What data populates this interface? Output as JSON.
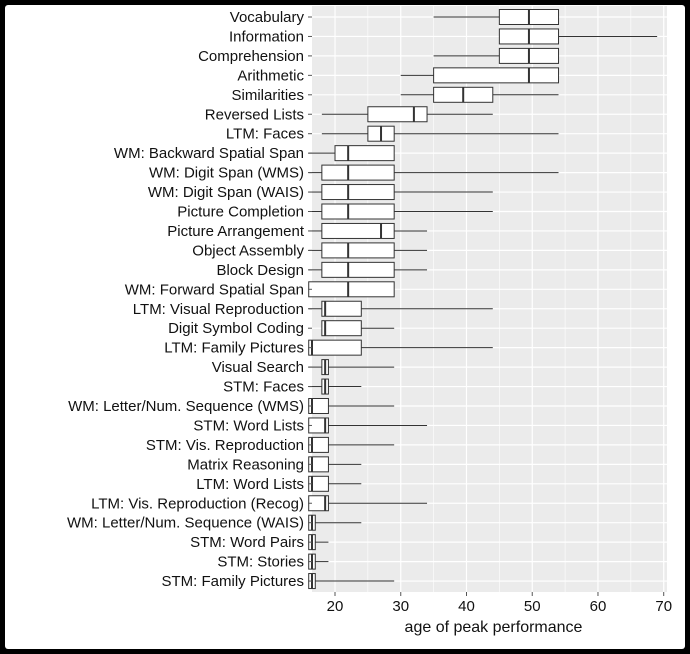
{
  "chart_data": {
    "type": "box",
    "xlabel": "age of peak performance",
    "xlim": [
      16.5,
      70.5
    ],
    "xticks": [
      20,
      30,
      40,
      50,
      60,
      70
    ],
    "grid": true,
    "items": [
      {
        "label": "Vocabulary",
        "lo": 35,
        "q1": 45,
        "med": 49.5,
        "q3": 54,
        "hi": 54
      },
      {
        "label": "Information",
        "lo": 45,
        "q1": 45,
        "med": 49.5,
        "q3": 54,
        "hi": 69
      },
      {
        "label": "Comprehension",
        "lo": 35,
        "q1": 45,
        "med": 49.5,
        "q3": 54,
        "hi": 54
      },
      {
        "label": "Arithmetic",
        "lo": 30,
        "q1": 35,
        "med": 49.5,
        "q3": 54,
        "hi": 54
      },
      {
        "label": "Similarities",
        "lo": 30,
        "q1": 35,
        "med": 39.5,
        "q3": 44,
        "hi": 54
      },
      {
        "label": "Reversed Lists",
        "lo": 18,
        "q1": 25,
        "med": 32,
        "q3": 34,
        "hi": 44
      },
      {
        "label": "LTM: Faces",
        "lo": 18,
        "q1": 25,
        "med": 27,
        "q3": 29,
        "hi": 54
      },
      {
        "label": "WM: Backward Spatial Span",
        "lo": 16,
        "q1": 20,
        "med": 22,
        "q3": 29,
        "hi": 29
      },
      {
        "label": "WM: Digit Span (WMS)",
        "lo": 16,
        "q1": 18,
        "med": 22,
        "q3": 29,
        "hi": 54
      },
      {
        "label": "WM: Digit Span (WAIS)",
        "lo": 16,
        "q1": 18,
        "med": 22,
        "q3": 29,
        "hi": 44
      },
      {
        "label": "Picture Completion",
        "lo": 16,
        "q1": 18,
        "med": 22,
        "q3": 29,
        "hi": 44
      },
      {
        "label": "Picture Arrangement",
        "lo": 16,
        "q1": 18,
        "med": 27,
        "q3": 29,
        "hi": 34
      },
      {
        "label": "Object Assembly",
        "lo": 16,
        "q1": 18,
        "med": 22,
        "q3": 29,
        "hi": 34
      },
      {
        "label": "Block Design",
        "lo": 16,
        "q1": 18,
        "med": 22,
        "q3": 29,
        "hi": 34
      },
      {
        "label": "WM: Forward Spatial Span",
        "lo": 16,
        "q1": 16,
        "med": 22,
        "q3": 29,
        "hi": 29
      },
      {
        "label": "LTM: Visual Reproduction",
        "lo": 16,
        "q1": 18,
        "med": 18.5,
        "q3": 24,
        "hi": 44
      },
      {
        "label": "Digit Symbol Coding",
        "lo": 18,
        "q1": 18,
        "med": 18.5,
        "q3": 24,
        "hi": 29
      },
      {
        "label": "LTM: Family Pictures",
        "lo": 16,
        "q1": 16,
        "med": 16.5,
        "q3": 24,
        "hi": 44
      },
      {
        "label": "Visual Search",
        "lo": 16,
        "q1": 18,
        "med": 18.5,
        "q3": 19,
        "hi": 29
      },
      {
        "label": "STM: Faces",
        "lo": 16,
        "q1": 18,
        "med": 18.5,
        "q3": 19,
        "hi": 24
      },
      {
        "label": "WM: Letter/Num. Sequence (WMS)",
        "lo": 16,
        "q1": 16,
        "med": 16.5,
        "q3": 19,
        "hi": 29
      },
      {
        "label": "STM: Word Lists",
        "lo": 16,
        "q1": 16,
        "med": 18.5,
        "q3": 19,
        "hi": 34
      },
      {
        "label": "STM: Vis. Reproduction",
        "lo": 16,
        "q1": 16,
        "med": 16.5,
        "q3": 19,
        "hi": 29
      },
      {
        "label": "Matrix Reasoning",
        "lo": 16,
        "q1": 16,
        "med": 16.5,
        "q3": 19,
        "hi": 24
      },
      {
        "label": "LTM: Word Lists",
        "lo": 16,
        "q1": 16,
        "med": 16.5,
        "q3": 19,
        "hi": 24
      },
      {
        "label": "LTM: Vis. Reproduction (Recog)",
        "lo": 16,
        "q1": 16,
        "med": 18.5,
        "q3": 19,
        "hi": 34
      },
      {
        "label": "WM: Letter/Num. Sequence (WAIS)",
        "lo": 16,
        "q1": 16,
        "med": 16.5,
        "q3": 17,
        "hi": 24
      },
      {
        "label": "STM: Word Pairs",
        "lo": 16,
        "q1": 16,
        "med": 16.5,
        "q3": 17,
        "hi": 19
      },
      {
        "label": "STM: Stories",
        "lo": 16,
        "q1": 16,
        "med": 16.5,
        "q3": 17,
        "hi": 19
      },
      {
        "label": "STM: Family Pictures",
        "lo": 16,
        "q1": 16,
        "med": 16.5,
        "q3": 17,
        "hi": 29
      }
    ],
    "colors": {
      "plot_bg": "#ebebeb",
      "grid": "#ffffff",
      "box_fill": "#ffffff",
      "line": "#333333"
    }
  }
}
